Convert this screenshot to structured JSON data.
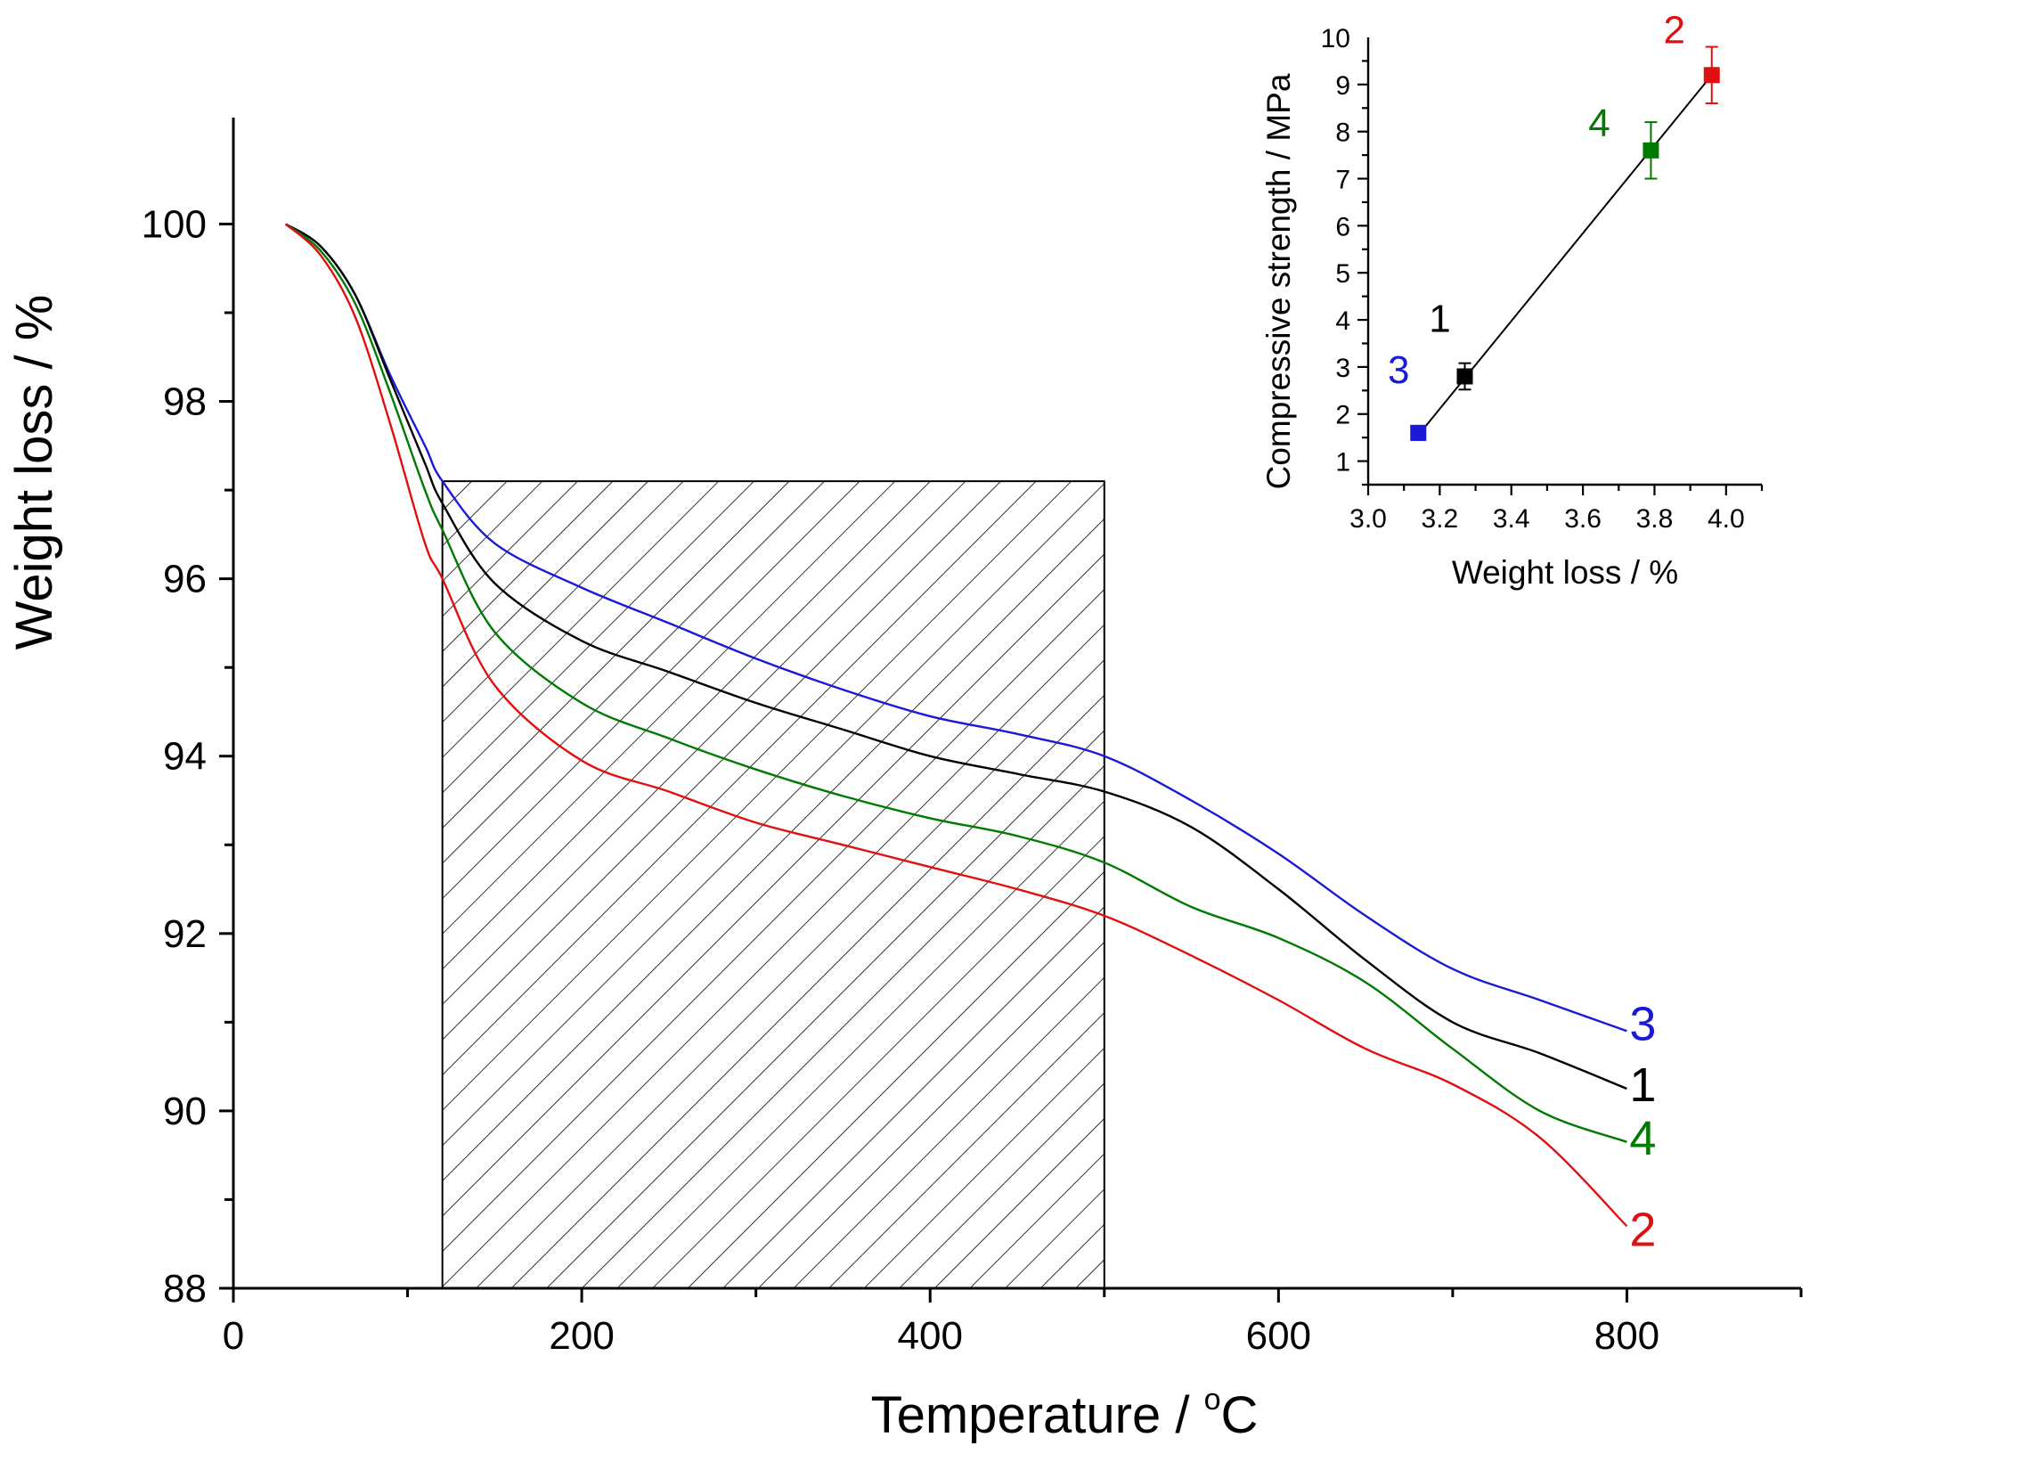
{
  "chart_data": [
    {
      "id": "main",
      "type": "line",
      "title": "",
      "xlabel": "Temperature / ",
      "xlabel_sup": "o",
      "xlabel_unit": "C",
      "ylabel": "Weight loss / %",
      "xlim": [
        0,
        900
      ],
      "ylim": [
        88,
        101.2
      ],
      "xticks": [
        0,
        200,
        400,
        600,
        800
      ],
      "yticks": [
        88,
        90,
        92,
        94,
        96,
        98,
        100
      ],
      "shaded_region": {
        "x": [
          120,
          500
        ],
        "y": [
          88,
          97.1
        ],
        "pattern": "diagonal-hatch"
      },
      "series": [
        {
          "name": "3",
          "color": "#1a1ad6",
          "x": [
            30,
            50,
            70,
            90,
            110,
            120,
            150,
            200,
            250,
            300,
            350,
            400,
            450,
            500,
            550,
            600,
            650,
            700,
            750,
            800
          ],
          "y": [
            100,
            99.75,
            99.2,
            98.3,
            97.5,
            97.1,
            96.4,
            95.9,
            95.5,
            95.1,
            94.75,
            94.45,
            94.25,
            94.0,
            93.5,
            92.9,
            92.2,
            91.6,
            91.25,
            90.9
          ]
        },
        {
          "name": "1",
          "color": "#000000",
          "x": [
            30,
            50,
            70,
            90,
            110,
            120,
            150,
            200,
            250,
            300,
            350,
            400,
            450,
            500,
            550,
            600,
            650,
            700,
            750,
            800
          ],
          "y": [
            100,
            99.75,
            99.2,
            98.25,
            97.3,
            96.85,
            95.95,
            95.3,
            94.95,
            94.6,
            94.3,
            94.0,
            93.8,
            93.6,
            93.2,
            92.5,
            91.7,
            91.0,
            90.65,
            90.25
          ]
        },
        {
          "name": "4",
          "color": "#007a00",
          "x": [
            30,
            50,
            70,
            90,
            110,
            120,
            150,
            200,
            250,
            300,
            350,
            400,
            450,
            500,
            550,
            600,
            650,
            700,
            750,
            800
          ],
          "y": [
            100,
            99.7,
            99.1,
            98.1,
            97.0,
            96.55,
            95.4,
            94.6,
            94.2,
            93.85,
            93.55,
            93.3,
            93.1,
            92.8,
            92.3,
            91.95,
            91.45,
            90.7,
            90.0,
            89.65
          ]
        },
        {
          "name": "2",
          "color": "#e01010",
          "x": [
            30,
            50,
            70,
            90,
            110,
            120,
            150,
            200,
            250,
            300,
            350,
            400,
            450,
            500,
            550,
            600,
            650,
            700,
            750,
            800
          ],
          "y": [
            100,
            99.65,
            98.95,
            97.75,
            96.4,
            96.0,
            94.8,
            93.95,
            93.6,
            93.25,
            93.0,
            92.75,
            92.5,
            92.2,
            91.75,
            91.25,
            90.7,
            90.3,
            89.7,
            88.7
          ]
        }
      ]
    },
    {
      "id": "inset",
      "type": "scatter",
      "title": "",
      "xlabel": "Weight loss / %",
      "ylabel": "Compressive strength / MPa",
      "xlim": [
        3.0,
        4.1
      ],
      "ylim": [
        0.5,
        10
      ],
      "xticks": [
        "3.0",
        "3.2",
        "3.4",
        "3.6",
        "3.8",
        "4.0"
      ],
      "yticks": [
        "1",
        "2",
        "3",
        "4",
        "5",
        "6",
        "7",
        "8",
        "9",
        "10"
      ],
      "points": [
        {
          "label": "3",
          "x": 3.14,
          "y": 1.6,
          "err": 0.15,
          "color": "#1a1ad6"
        },
        {
          "label": "1",
          "x": 3.27,
          "y": 2.8,
          "err": 0.28,
          "color": "#000000"
        },
        {
          "label": "4",
          "x": 3.79,
          "y": 7.6,
          "err": 0.6,
          "color": "#007a00"
        },
        {
          "label": "2",
          "x": 3.96,
          "y": 9.2,
          "err": 0.6,
          "color": "#e01010"
        }
      ],
      "fit_line": {
        "x": [
          3.14,
          3.96
        ],
        "y": [
          1.55,
          9.2
        ]
      }
    }
  ]
}
